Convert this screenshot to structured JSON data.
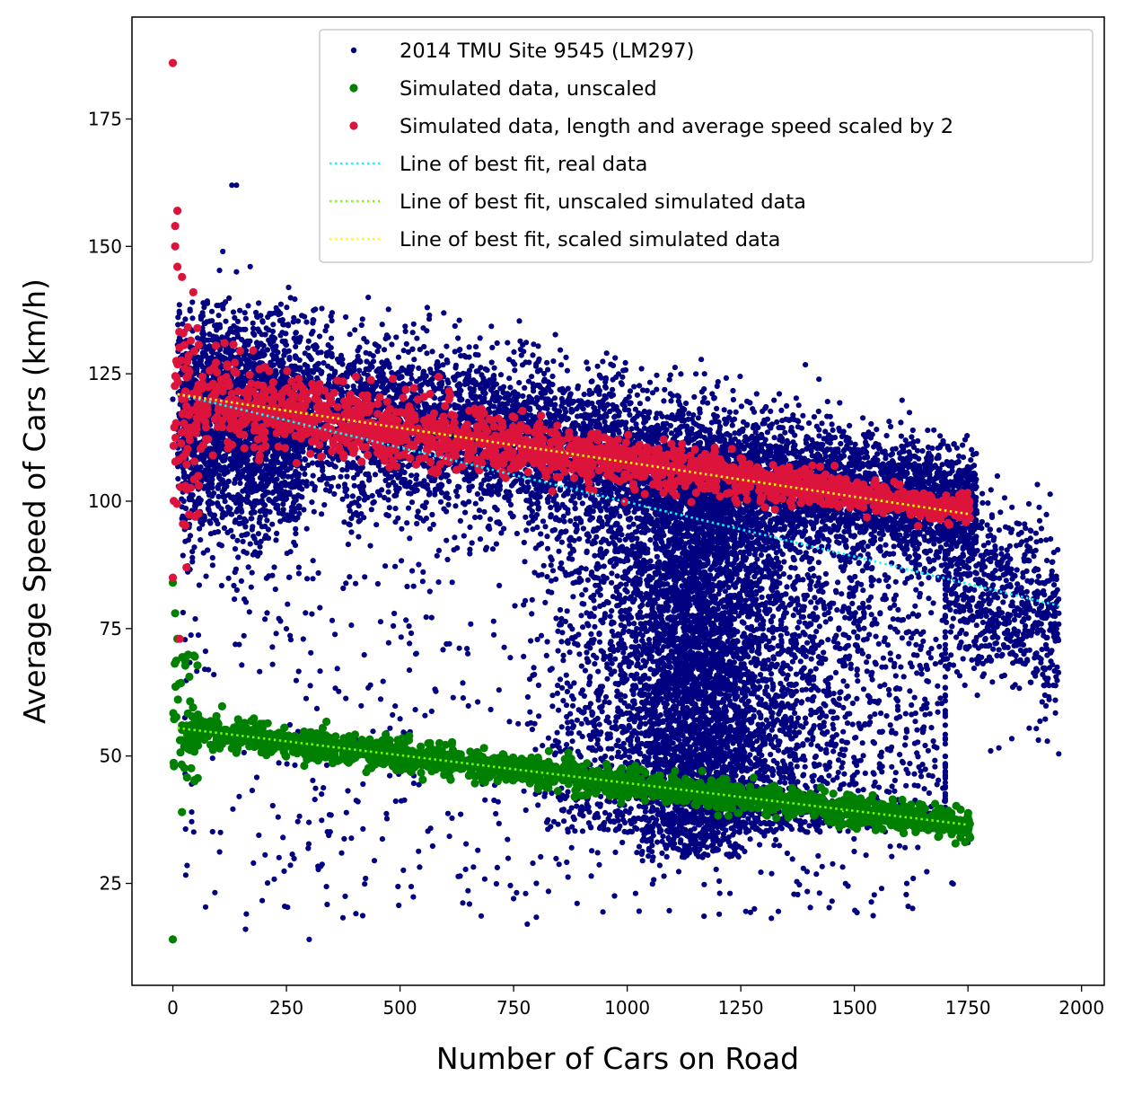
{
  "chart_data": {
    "type": "scatter",
    "title": "",
    "xlabel": "Number of Cars on Road",
    "ylabel": "Average Speed of Cars (km/h)",
    "xlim": [
      -90,
      2050
    ],
    "ylim": [
      5,
      195
    ],
    "xticks": [
      0,
      250,
      500,
      750,
      1000,
      1250,
      1500,
      1750,
      2000
    ],
    "yticks": [
      25,
      50,
      75,
      100,
      125,
      150,
      175
    ],
    "grid": false,
    "legend_position": "top-right",
    "series": [
      {
        "name": "2014 TMU Site 9545 (LM297)",
        "kind": "scatter",
        "color": "#000080",
        "marker_size": "small",
        "description_points": [
          {
            "x": 0,
            "y": 120
          },
          {
            "x": 50,
            "y": 110
          },
          {
            "x": 100,
            "y": 125
          },
          {
            "x": 130,
            "y": 162
          },
          {
            "x": 140,
            "y": 162
          },
          {
            "x": 110,
            "y": 149
          },
          {
            "x": 140,
            "y": 145
          },
          {
            "x": 150,
            "y": 100
          },
          {
            "x": 200,
            "y": 118
          },
          {
            "x": 250,
            "y": 120
          },
          {
            "x": 300,
            "y": 115
          },
          {
            "x": 350,
            "y": 118
          },
          {
            "x": 400,
            "y": 112
          },
          {
            "x": 430,
            "y": 140
          },
          {
            "x": 500,
            "y": 115
          },
          {
            "x": 560,
            "y": 138
          },
          {
            "x": 600,
            "y": 113
          },
          {
            "x": 700,
            "y": 115
          },
          {
            "x": 800,
            "y": 110
          },
          {
            "x": 900,
            "y": 112
          },
          {
            "x": 1000,
            "y": 110
          },
          {
            "x": 1100,
            "y": 108
          },
          {
            "x": 1170,
            "y": 125
          },
          {
            "x": 1200,
            "y": 105
          },
          {
            "x": 1300,
            "y": 104
          },
          {
            "x": 1400,
            "y": 106
          },
          {
            "x": 1500,
            "y": 104
          },
          {
            "x": 1600,
            "y": 102
          },
          {
            "x": 1700,
            "y": 100
          },
          {
            "x": 1800,
            "y": 85
          },
          {
            "x": 1900,
            "y": 80
          },
          {
            "x": 1950,
            "y": 78
          },
          {
            "x": 1220,
            "y": 50
          },
          {
            "x": 1200,
            "y": 35
          },
          {
            "x": 1100,
            "y": 45
          },
          {
            "x": 1000,
            "y": 55
          },
          {
            "x": 900,
            "y": 40
          },
          {
            "x": 800,
            "y": 25
          },
          {
            "x": 780,
            "y": 17
          },
          {
            "x": 750,
            "y": 22
          },
          {
            "x": 160,
            "y": 16
          },
          {
            "x": 300,
            "y": 14
          },
          {
            "x": 1280,
            "y": 20
          },
          {
            "x": 1560,
            "y": 24
          },
          {
            "x": 1750,
            "y": 33
          },
          {
            "x": 1800,
            "y": 51
          },
          {
            "x": 1750,
            "y": 95
          },
          {
            "x": 1850,
            "y": 70
          }
        ]
      },
      {
        "name": "Simulated data, unscaled",
        "kind": "scatter",
        "color": "#008000",
        "marker_size": "medium",
        "description_points": [
          {
            "x": 0,
            "y": 14
          },
          {
            "x": 0,
            "y": 84
          },
          {
            "x": 5,
            "y": 78
          },
          {
            "x": 10,
            "y": 73
          },
          {
            "x": 20,
            "y": 39
          },
          {
            "x": 50,
            "y": 52
          },
          {
            "x": 100,
            "y": 55
          },
          {
            "x": 200,
            "y": 52
          },
          {
            "x": 300,
            "y": 51
          },
          {
            "x": 400,
            "y": 50
          },
          {
            "x": 500,
            "y": 49
          },
          {
            "x": 600,
            "y": 48
          },
          {
            "x": 700,
            "y": 47
          },
          {
            "x": 800,
            "y": 46
          },
          {
            "x": 900,
            "y": 45
          },
          {
            "x": 1000,
            "y": 44
          },
          {
            "x": 1100,
            "y": 43
          },
          {
            "x": 1200,
            "y": 42
          },
          {
            "x": 1300,
            "y": 41
          },
          {
            "x": 1400,
            "y": 40
          },
          {
            "x": 1500,
            "y": 39
          },
          {
            "x": 1600,
            "y": 38
          },
          {
            "x": 1700,
            "y": 37
          },
          {
            "x": 1750,
            "y": 36
          }
        ]
      },
      {
        "name": "Simulated data, length and average speed scaled by 2",
        "kind": "scatter",
        "color": "#dc143c",
        "marker_size": "medium",
        "description_points": [
          {
            "x": 0,
            "y": 186
          },
          {
            "x": 5,
            "y": 154
          },
          {
            "x": 10,
            "y": 157
          },
          {
            "x": 5,
            "y": 150
          },
          {
            "x": 10,
            "y": 146
          },
          {
            "x": 20,
            "y": 144
          },
          {
            "x": 45,
            "y": 141
          },
          {
            "x": 0,
            "y": 85
          },
          {
            "x": 15,
            "y": 73
          },
          {
            "x": 30,
            "y": 87
          },
          {
            "x": 50,
            "y": 115
          },
          {
            "x": 100,
            "y": 118
          },
          {
            "x": 200,
            "y": 117
          },
          {
            "x": 300,
            "y": 116
          },
          {
            "x": 400,
            "y": 114
          },
          {
            "x": 500,
            "y": 113
          },
          {
            "x": 600,
            "y": 112
          },
          {
            "x": 700,
            "y": 110
          },
          {
            "x": 800,
            "y": 109
          },
          {
            "x": 900,
            "y": 108
          },
          {
            "x": 1000,
            "y": 107
          },
          {
            "x": 1100,
            "y": 106
          },
          {
            "x": 1200,
            "y": 105
          },
          {
            "x": 1300,
            "y": 104
          },
          {
            "x": 1400,
            "y": 103
          },
          {
            "x": 1500,
            "y": 102
          },
          {
            "x": 1600,
            "y": 101
          },
          {
            "x": 1700,
            "y": 100
          },
          {
            "x": 1750,
            "y": 98
          }
        ]
      },
      {
        "name": "Line of best fit, real data",
        "kind": "line",
        "style": "dotted",
        "color": "#00ffff",
        "x": [
          10,
          1950
        ],
        "y": [
          121,
          79.5
        ]
      },
      {
        "name": "Line of best fit, unscaled simulated data",
        "kind": "line",
        "style": "dotted",
        "color": "#7cfc00",
        "x": [
          10,
          1750
        ],
        "y": [
          55.5,
          36.5
        ]
      },
      {
        "name": "Line of best fit, scaled simulated data",
        "kind": "line",
        "style": "dotted",
        "color": "#ffff00",
        "x": [
          10,
          1750
        ],
        "y": [
          121,
          97.5
        ]
      }
    ]
  }
}
